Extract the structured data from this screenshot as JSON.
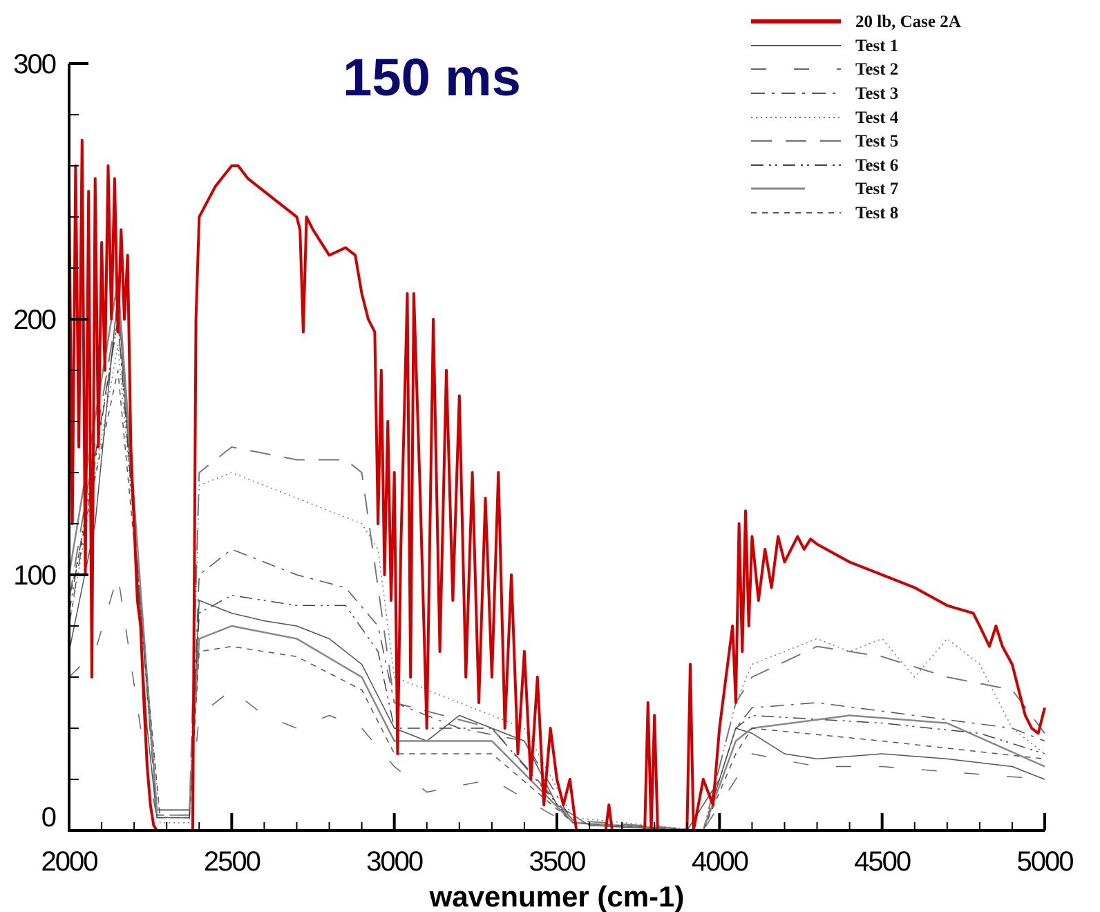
{
  "chart_data": {
    "type": "line",
    "title": "150 ms",
    "xlabel": "wavenumer (cm-1)",
    "ylabel": "",
    "xlim": [
      2000,
      5000
    ],
    "ylim": [
      0,
      300
    ],
    "xticks": [
      2000,
      2500,
      3000,
      3500,
      4000,
      4500,
      5000
    ],
    "yticks": [
      0,
      100,
      200,
      300
    ],
    "x_minor_step": 100,
    "y_minor_step": 20,
    "grid": false,
    "legend_position": "top-right",
    "series": [
      {
        "name": "20 lb, Case 2A",
        "color": "#d00000",
        "style": "thick",
        "points": [
          [
            2000,
            250
          ],
          [
            2010,
            120
          ],
          [
            2020,
            260
          ],
          [
            2030,
            150
          ],
          [
            2040,
            270
          ],
          [
            2050,
            100
          ],
          [
            2060,
            250
          ],
          [
            2070,
            60
          ],
          [
            2080,
            255
          ],
          [
            2090,
            150
          ],
          [
            2100,
            230
          ],
          [
            2110,
            180
          ],
          [
            2120,
            260
          ],
          [
            2130,
            200
          ],
          [
            2140,
            255
          ],
          [
            2150,
            195
          ],
          [
            2160,
            235
          ],
          [
            2170,
            200
          ],
          [
            2180,
            225
          ],
          [
            2190,
            150
          ],
          [
            2200,
            120
          ],
          [
            2210,
            90
          ],
          [
            2220,
            80
          ],
          [
            2230,
            50
          ],
          [
            2240,
            25
          ],
          [
            2250,
            10
          ],
          [
            2260,
            2
          ],
          [
            2270,
            0
          ],
          [
            2380,
            0
          ],
          [
            2390,
            200
          ],
          [
            2400,
            240
          ],
          [
            2450,
            252
          ],
          [
            2500,
            260
          ],
          [
            2520,
            260
          ],
          [
            2550,
            255
          ],
          [
            2600,
            250
          ],
          [
            2650,
            245
          ],
          [
            2700,
            240
          ],
          [
            2710,
            235
          ],
          [
            2720,
            195
          ],
          [
            2730,
            240
          ],
          [
            2750,
            235
          ],
          [
            2800,
            225
          ],
          [
            2850,
            228
          ],
          [
            2880,
            225
          ],
          [
            2900,
            210
          ],
          [
            2920,
            200
          ],
          [
            2940,
            195
          ],
          [
            2950,
            120
          ],
          [
            2960,
            180
          ],
          [
            2970,
            100
          ],
          [
            2980,
            160
          ],
          [
            2990,
            90
          ],
          [
            3000,
            140
          ],
          [
            3010,
            30
          ],
          [
            3020,
            110
          ],
          [
            3040,
            210
          ],
          [
            3050,
            60
          ],
          [
            3060,
            210
          ],
          [
            3080,
            130
          ],
          [
            3100,
            40
          ],
          [
            3120,
            200
          ],
          [
            3140,
            70
          ],
          [
            3160,
            180
          ],
          [
            3180,
            90
          ],
          [
            3200,
            170
          ],
          [
            3220,
            60
          ],
          [
            3240,
            140
          ],
          [
            3260,
            50
          ],
          [
            3280,
            130
          ],
          [
            3300,
            60
          ],
          [
            3320,
            140
          ],
          [
            3340,
            40
          ],
          [
            3360,
            100
          ],
          [
            3380,
            30
          ],
          [
            3400,
            70
          ],
          [
            3420,
            20
          ],
          [
            3440,
            60
          ],
          [
            3460,
            10
          ],
          [
            3480,
            40
          ],
          [
            3500,
            20
          ],
          [
            3520,
            10
          ],
          [
            3540,
            20
          ],
          [
            3560,
            0
          ],
          [
            3650,
            0
          ],
          [
            3660,
            10
          ],
          [
            3670,
            0
          ],
          [
            3770,
            0
          ],
          [
            3780,
            50
          ],
          [
            3790,
            0
          ],
          [
            3800,
            45
          ],
          [
            3810,
            0
          ],
          [
            3900,
            0
          ],
          [
            3910,
            65
          ],
          [
            3920,
            0
          ],
          [
            3950,
            20
          ],
          [
            3980,
            10
          ],
          [
            4000,
            40
          ],
          [
            4020,
            60
          ],
          [
            4040,
            80
          ],
          [
            4050,
            50
          ],
          [
            4060,
            120
          ],
          [
            4070,
            70
          ],
          [
            4080,
            125
          ],
          [
            4090,
            80
          ],
          [
            4100,
            115
          ],
          [
            4120,
            90
          ],
          [
            4140,
            110
          ],
          [
            4160,
            95
          ],
          [
            4180,
            115
          ],
          [
            4200,
            105
          ],
          [
            4220,
            110
          ],
          [
            4240,
            115
          ],
          [
            4260,
            110
          ],
          [
            4280,
            114
          ],
          [
            4300,
            112
          ],
          [
            4400,
            105
          ],
          [
            4500,
            100
          ],
          [
            4600,
            95
          ],
          [
            4700,
            88
          ],
          [
            4780,
            85
          ],
          [
            4800,
            80
          ],
          [
            4830,
            72
          ],
          [
            4850,
            80
          ],
          [
            4870,
            72
          ],
          [
            4900,
            65
          ],
          [
            4920,
            55
          ],
          [
            4940,
            45
          ],
          [
            4960,
            40
          ],
          [
            4980,
            38
          ],
          [
            5000,
            48
          ]
        ]
      },
      {
        "name": "Test 1",
        "color": "#555555",
        "style": "solid",
        "points": [
          [
            2000,
            70
          ],
          [
            2080,
            120
          ],
          [
            2150,
            210
          ],
          [
            2200,
            120
          ],
          [
            2240,
            40
          ],
          [
            2270,
            5
          ],
          [
            2370,
            5
          ],
          [
            2400,
            90
          ],
          [
            2500,
            85
          ],
          [
            2600,
            82
          ],
          [
            2700,
            80
          ],
          [
            2800,
            75
          ],
          [
            2900,
            65
          ],
          [
            3000,
            40
          ],
          [
            3100,
            35
          ],
          [
            3200,
            45
          ],
          [
            3300,
            40
          ],
          [
            3400,
            35
          ],
          [
            3500,
            10
          ],
          [
            3600,
            2
          ],
          [
            3900,
            0
          ],
          [
            4000,
            20
          ],
          [
            4050,
            40
          ],
          [
            4100,
            38
          ],
          [
            4200,
            30
          ],
          [
            4300,
            28
          ],
          [
            4500,
            30
          ],
          [
            4700,
            28
          ],
          [
            4900,
            25
          ],
          [
            5000,
            20
          ]
        ]
      },
      {
        "name": "Test 2",
        "color": "#666666",
        "style": "longdash",
        "points": [
          [
            2000,
            60
          ],
          [
            2080,
            70
          ],
          [
            2150,
            100
          ],
          [
            2220,
            40
          ],
          [
            2270,
            5
          ],
          [
            2370,
            5
          ],
          [
            2400,
            45
          ],
          [
            2500,
            55
          ],
          [
            2600,
            45
          ],
          [
            2700,
            40
          ],
          [
            2800,
            45
          ],
          [
            2900,
            40
          ],
          [
            3000,
            25
          ],
          [
            3100,
            15
          ],
          [
            3300,
            20
          ],
          [
            3500,
            5
          ],
          [
            3700,
            0
          ],
          [
            3950,
            0
          ],
          [
            4000,
            10
          ],
          [
            4100,
            30
          ],
          [
            4300,
            25
          ],
          [
            4500,
            25
          ],
          [
            4800,
            22
          ],
          [
            5000,
            20
          ]
        ]
      },
      {
        "name": "Test 3",
        "color": "#555555",
        "style": "dashdot",
        "points": [
          [
            2000,
            80
          ],
          [
            2150,
            200
          ],
          [
            2270,
            6
          ],
          [
            2370,
            6
          ],
          [
            2400,
            100
          ],
          [
            2500,
            110
          ],
          [
            2600,
            105
          ],
          [
            2700,
            100
          ],
          [
            2850,
            95
          ],
          [
            2950,
            80
          ],
          [
            3000,
            50
          ],
          [
            3200,
            40
          ],
          [
            3400,
            35
          ],
          [
            3550,
            3
          ],
          [
            3950,
            0
          ],
          [
            4050,
            40
          ],
          [
            4100,
            48
          ],
          [
            4300,
            50
          ],
          [
            4600,
            45
          ],
          [
            4900,
            40
          ],
          [
            5000,
            35
          ]
        ]
      },
      {
        "name": "Test 4",
        "color": "#777777",
        "style": "dotted",
        "points": [
          [
            2000,
            80
          ],
          [
            2150,
            190
          ],
          [
            2280,
            3
          ],
          [
            2370,
            3
          ],
          [
            2400,
            135
          ],
          [
            2500,
            140
          ],
          [
            2600,
            135
          ],
          [
            2700,
            130
          ],
          [
            2900,
            120
          ],
          [
            2950,
            110
          ],
          [
            3000,
            60
          ],
          [
            3200,
            50
          ],
          [
            3400,
            40
          ],
          [
            3550,
            5
          ],
          [
            3950,
            0
          ],
          [
            4050,
            50
          ],
          [
            4100,
            65
          ],
          [
            4300,
            75
          ],
          [
            4400,
            70
          ],
          [
            4500,
            75
          ],
          [
            4600,
            60
          ],
          [
            4700,
            75
          ],
          [
            4800,
            65
          ],
          [
            4900,
            40
          ],
          [
            5000,
            30
          ]
        ]
      },
      {
        "name": "Test 5",
        "color": "#777777",
        "style": "longdash2",
        "points": [
          [
            2000,
            90
          ],
          [
            2150,
            205
          ],
          [
            2270,
            6
          ],
          [
            2370,
            6
          ],
          [
            2400,
            140
          ],
          [
            2500,
            150
          ],
          [
            2700,
            145
          ],
          [
            2850,
            145
          ],
          [
            2900,
            140
          ],
          [
            3000,
            50
          ],
          [
            3300,
            40
          ],
          [
            3550,
            4
          ],
          [
            3950,
            0
          ],
          [
            4050,
            50
          ],
          [
            4100,
            60
          ],
          [
            4300,
            72
          ],
          [
            4500,
            68
          ],
          [
            4700,
            60
          ],
          [
            4900,
            55
          ],
          [
            5000,
            38
          ]
        ]
      },
      {
        "name": "Test 6",
        "color": "#444444",
        "style": "dashdotdot",
        "points": [
          [
            2000,
            85
          ],
          [
            2150,
            200
          ],
          [
            2270,
            5
          ],
          [
            2370,
            5
          ],
          [
            2400,
            85
          ],
          [
            2500,
            92
          ],
          [
            2700,
            88
          ],
          [
            2850,
            88
          ],
          [
            2950,
            70
          ],
          [
            3000,
            40
          ],
          [
            3300,
            40
          ],
          [
            3550,
            3
          ],
          [
            3950,
            0
          ],
          [
            4050,
            40
          ],
          [
            4100,
            45
          ],
          [
            4500,
            42
          ],
          [
            4800,
            38
          ],
          [
            5000,
            30
          ]
        ]
      },
      {
        "name": "Test 7",
        "color": "#888888",
        "style": "thicksolid",
        "points": [
          [
            2000,
            100
          ],
          [
            2150,
            215
          ],
          [
            2270,
            8
          ],
          [
            2370,
            8
          ],
          [
            2400,
            75
          ],
          [
            2500,
            80
          ],
          [
            2700,
            75
          ],
          [
            2900,
            60
          ],
          [
            3000,
            35
          ],
          [
            3300,
            35
          ],
          [
            3550,
            3
          ],
          [
            3950,
            0
          ],
          [
            4050,
            35
          ],
          [
            4100,
            40
          ],
          [
            4400,
            45
          ],
          [
            4700,
            42
          ],
          [
            5000,
            25
          ]
        ]
      },
      {
        "name": "Test 8",
        "color": "#555555",
        "style": "shortdash",
        "points": [
          [
            2000,
            90
          ],
          [
            2150,
            180
          ],
          [
            2280,
            5
          ],
          [
            2370,
            5
          ],
          [
            2400,
            70
          ],
          [
            2500,
            72
          ],
          [
            2700,
            68
          ],
          [
            2900,
            55
          ],
          [
            3000,
            30
          ],
          [
            3300,
            30
          ],
          [
            3550,
            3
          ],
          [
            3950,
            0
          ],
          [
            4050,
            30
          ],
          [
            4100,
            40
          ],
          [
            4500,
            35
          ],
          [
            5000,
            28
          ]
        ]
      }
    ]
  }
}
